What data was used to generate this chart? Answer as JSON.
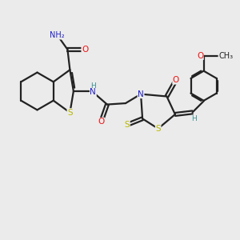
{
  "background_color": "#ebebeb",
  "bond_color": "#222222",
  "atom_colors": {
    "S": "#b8b800",
    "N": "#2020cc",
    "O": "#ee1111",
    "H": "#3a9090",
    "C": "#222222"
  },
  "figsize": [
    3.0,
    3.0
  ],
  "dpi": 100
}
